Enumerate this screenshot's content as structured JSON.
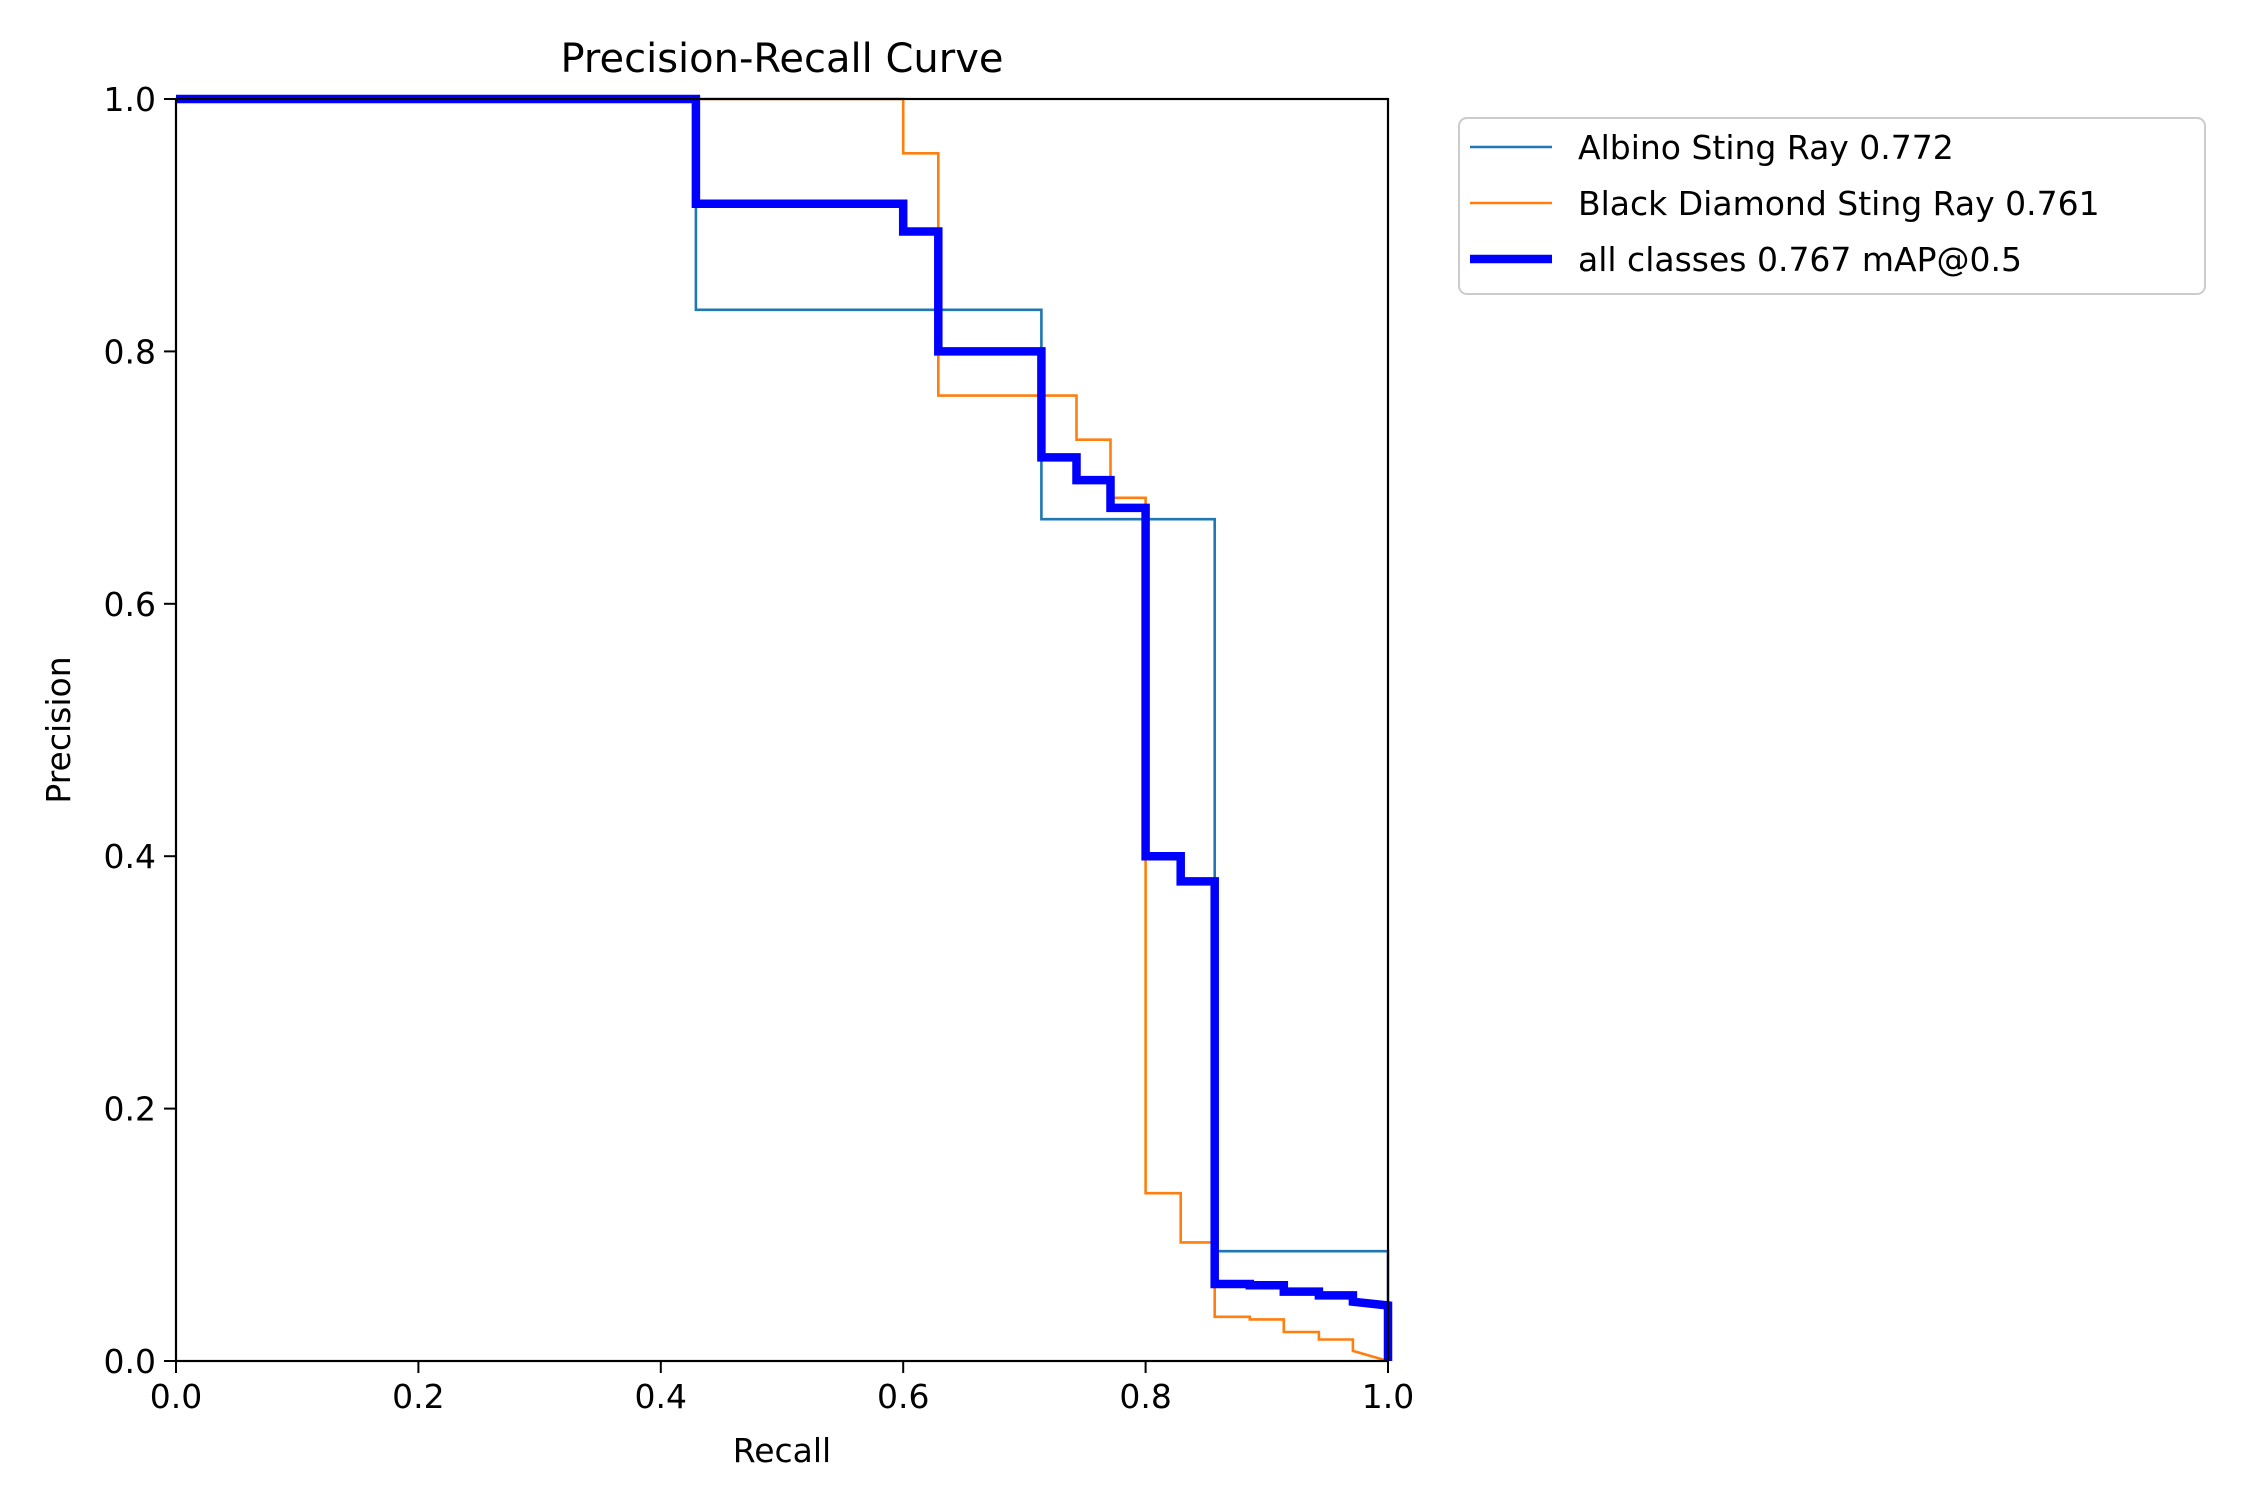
{
  "chart_data": {
    "type": "line",
    "title": "Precision-Recall Curve",
    "xlabel": "Recall",
    "ylabel": "Precision",
    "xlim": [
      0,
      1
    ],
    "ylim": [
      0,
      1
    ],
    "xticks": [
      "0.0",
      "0.2",
      "0.4",
      "0.6",
      "0.8",
      "1.0"
    ],
    "yticks": [
      "0.0",
      "0.2",
      "0.4",
      "0.6",
      "0.8",
      "1.0"
    ],
    "grid": false,
    "legend_position": "outside upper-right",
    "series": [
      {
        "name": "Albino Sting Ray 0.772",
        "color": "#1f77b4",
        "style": "thin",
        "x": [
          0,
          0.429,
          0.429,
          0.714,
          0.714,
          0.857,
          0.857,
          1.0,
          1.0
        ],
        "y": [
          1.0,
          1.0,
          0.833,
          0.833,
          0.667,
          0.667,
          0.087,
          0.087,
          0.0
        ]
      },
      {
        "name": "Black Diamond Sting Ray 0.761",
        "color": "#ff7f0e",
        "style": "thin",
        "x": [
          0,
          0.6,
          0.6,
          0.629,
          0.629,
          0.743,
          0.743,
          0.771,
          0.771,
          0.8,
          0.8,
          0.829,
          0.829,
          0.857,
          0.857,
          0.886,
          0.886,
          0.914,
          0.914,
          0.943,
          0.943,
          0.971,
          0.971,
          1.0
        ],
        "y": [
          1.0,
          1.0,
          0.957,
          0.957,
          0.765,
          0.765,
          0.73,
          0.73,
          0.684,
          0.684,
          0.133,
          0.133,
          0.094,
          0.094,
          0.035,
          0.035,
          0.033,
          0.033,
          0.023,
          0.023,
          0.017,
          0.017,
          0.008,
          0.0
        ]
      },
      {
        "name": "all classes 0.767 mAP@0.5",
        "color": "#0000ff",
        "style": "thick",
        "x": [
          0,
          0.429,
          0.429,
          0.6,
          0.6,
          0.629,
          0.629,
          0.714,
          0.714,
          0.743,
          0.743,
          0.771,
          0.771,
          0.8,
          0.8,
          0.829,
          0.829,
          0.857,
          0.857,
          0.886,
          0.886,
          0.914,
          0.914,
          0.943,
          0.943,
          0.971,
          0.971,
          1.0,
          1.0
        ],
        "y": [
          1.0,
          1.0,
          0.917,
          0.917,
          0.895,
          0.895,
          0.8,
          0.8,
          0.716,
          0.716,
          0.698,
          0.698,
          0.676,
          0.676,
          0.4,
          0.4,
          0.38,
          0.38,
          0.061,
          0.061,
          0.06,
          0.06,
          0.055,
          0.055,
          0.052,
          0.052,
          0.047,
          0.044,
          0.0
        ]
      }
    ]
  }
}
